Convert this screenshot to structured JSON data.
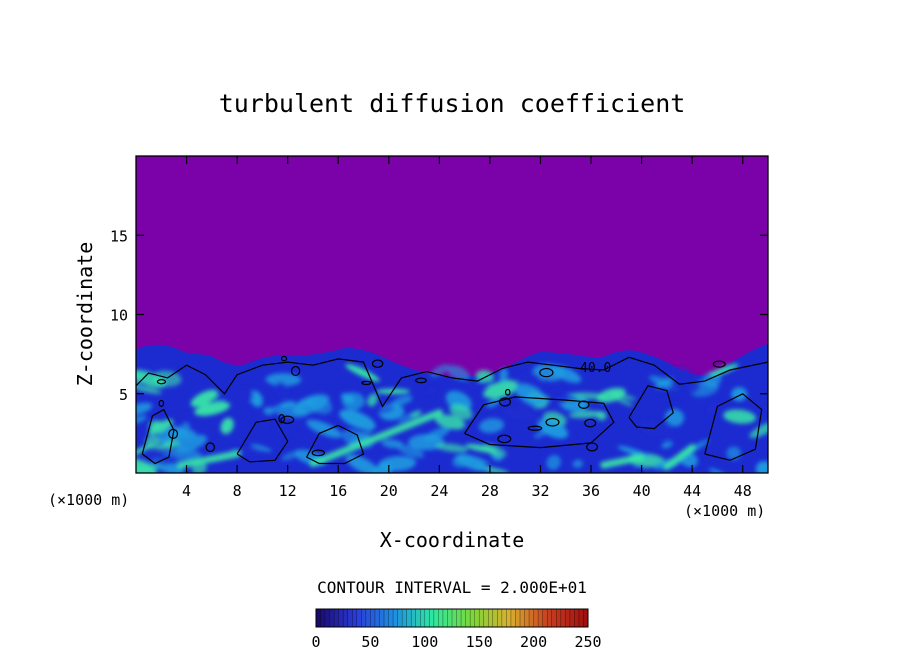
{
  "chart_data": {
    "type": "heatmap",
    "title": "turbulent diffusion coefficient",
    "xlabel": "X-coordinate",
    "ylabel": "Z-coordinate",
    "x_unit": "(×1000 m)",
    "y_unit": "(×1000 m)",
    "xlim": [
      0,
      50
    ],
    "ylim": [
      0,
      20
    ],
    "x_ticks": [
      4,
      8,
      12,
      16,
      20,
      24,
      28,
      32,
      36,
      40,
      44,
      48
    ],
    "y_ticks": [
      5,
      10,
      15
    ],
    "contour_interval_label": "CONTOUR INTERVAL = 2.000E+01",
    "contour_label": "40.0",
    "colorbar": {
      "min": 0,
      "max": 250,
      "ticks": [
        0,
        50,
        100,
        150,
        200,
        250
      ],
      "colors": [
        "#1a0a6e",
        "#2a3cd8",
        "#1e8fe0",
        "#2ee8a0",
        "#7ad83a",
        "#d8b030",
        "#c84020",
        "#a01010"
      ]
    },
    "background_value_color": "#7a02a8",
    "low_value_color": "#1c2bd0",
    "mid_value_color": "#1ea0e0",
    "high_value_color": "#38e8a8",
    "mixed_layer_top_km": 8
  }
}
